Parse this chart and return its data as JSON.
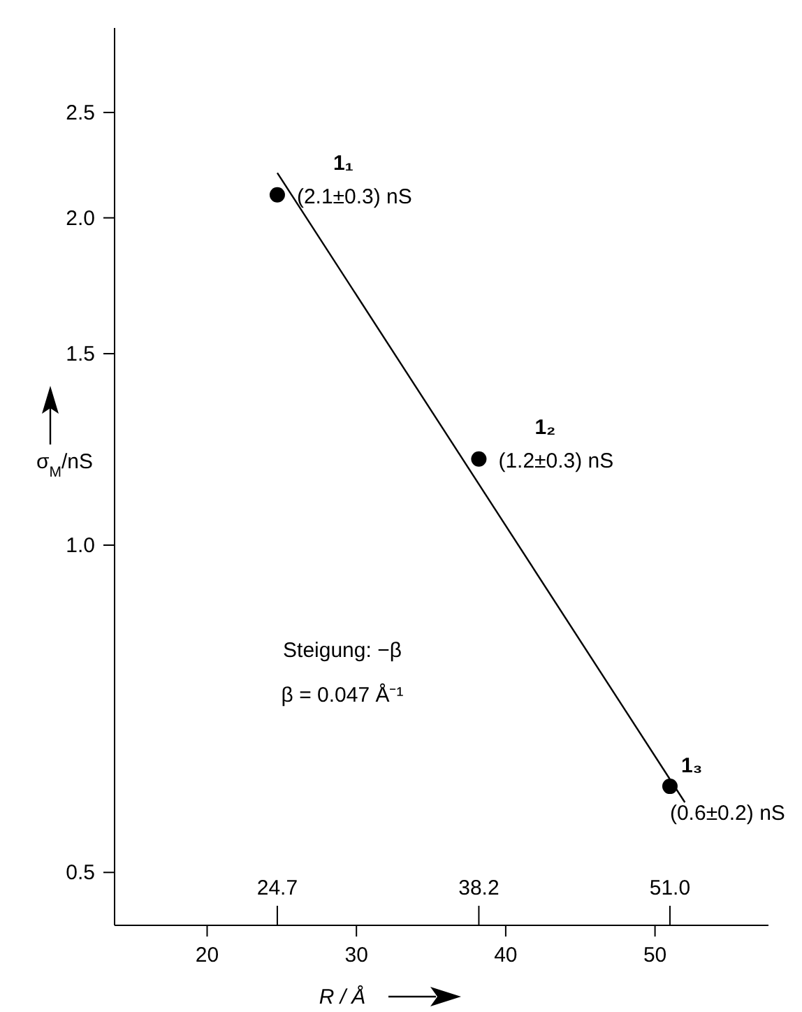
{
  "chart_data": {
    "type": "scatter",
    "xlabel": "R / Å",
    "ylabel": "σ$_{M}$/nS",
    "log": "y",
    "marker": "circle",
    "grid": false,
    "xlim": [
      13.8,
      57.6
    ],
    "xticks": [
      20,
      30,
      40,
      50
    ],
    "x2lim": [
      13.8,
      57.6
    ],
    "x2ticks": [
      24.7,
      38.2,
      {
        "value": 51,
        "label": "51.0"
      }
    ],
    "ylim": [
      0.447,
      2.99
    ],
    "yticks": [
      0.5,
      {
        "value": 1,
        "label": "1.0"
      },
      1.5,
      {
        "value": 2,
        "label": "2.0"
      },
      2.5
    ],
    "series": [
      {
        "color": "#000000",
        "x": [
          24.7,
          38.2,
          51.0
        ],
        "values": [
          2.1,
          1.2,
          0.6
        ]
      },
      {
        "type": "line",
        "color": "#000000",
        "marker": "none",
        "x": [
          24.7,
          52.0
        ],
        "values": [
          2.2,
          0.58
        ]
      }
    ],
    "annotations": [
      {
        "text": "1₁",
        "x": 24.7,
        "y": 2.1
      },
      {
        "text": "(2.1±0.3) nS",
        "x": 24.7,
        "y": 2.1
      },
      {
        "text": "1₂",
        "x": 38.2,
        "y": 1.2
      },
      {
        "text": "(1.2±0.3) nS",
        "x": 38.2,
        "y": 1.2
      },
      {
        "text": "1₃",
        "x": 51.0,
        "y": 0.6
      },
      {
        "text": "(0.6±0.2) nS",
        "x": 51.0,
        "y": 0.6
      },
      "Steigung: −β",
      "β = 0.047 Å⁻¹"
    ]
  }
}
